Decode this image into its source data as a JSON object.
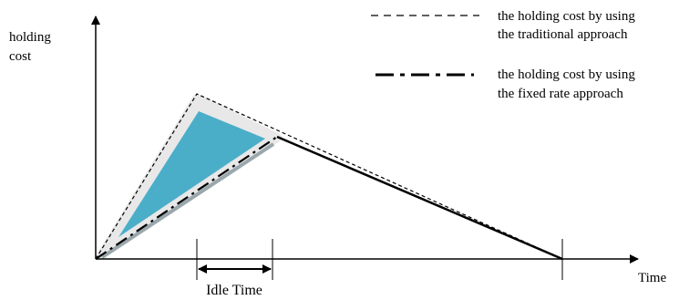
{
  "axes": {
    "y_label_line1": "holding",
    "y_label_line2": "cost",
    "x_label": "Time"
  },
  "legend": {
    "traditional_line1": "the holding cost by using",
    "traditional_line2": "the traditional approach",
    "fixed_line1": "the holding cost by using",
    "fixed_line2": "the fixed rate approach"
  },
  "annotations": {
    "idle_time": "Idle Time"
  },
  "colors": {
    "shaded_region": "#4aaec9",
    "shaded_border": "#e6e6e6",
    "axis": "#000000"
  }
}
